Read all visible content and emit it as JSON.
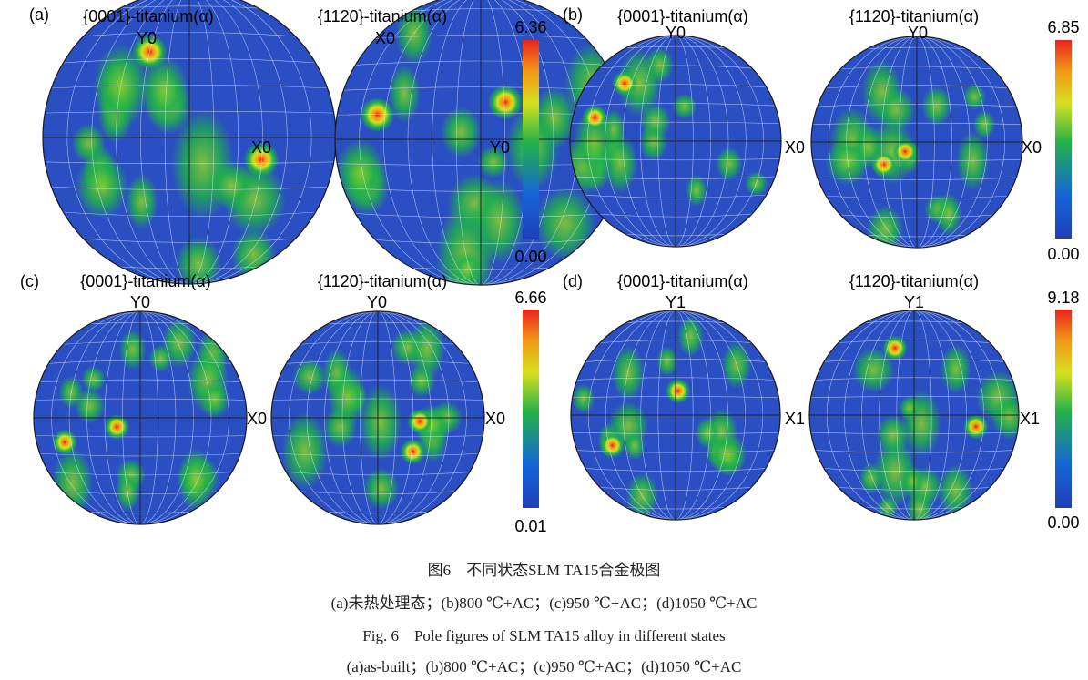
{
  "colors": {
    "background": "#2a4fc2",
    "grid": "#dfe6ff",
    "rim": "#1a1a1a",
    "ramp": [
      "#1f3fb8",
      "#1565d8",
      "#21b14a",
      "#d6e020",
      "#f29a16",
      "#e8231b"
    ]
  },
  "panels": [
    {
      "label": "(a)",
      "scale": {
        "max": "6.36",
        "min": "0.00"
      },
      "figures": [
        {
          "title": "{0001}-titanium(α)",
          "top_axis": "Y0",
          "right_axis": "X0"
        },
        {
          "title": "{1120}-titanium(α)",
          "top_axis": "X0",
          "right_axis": "Y0"
        }
      ]
    },
    {
      "label": "(b)",
      "scale": {
        "max": "6.85",
        "min": "0.00"
      },
      "figures": [
        {
          "title": "{0001}-titanium(α)",
          "top_axis": "Y0",
          "right_axis": "X0"
        },
        {
          "title": "{1120}-titanium(α)",
          "top_axis": "Y0",
          "right_axis": "X0"
        }
      ]
    },
    {
      "label": "(c)",
      "scale": {
        "max": "6.66",
        "min": "0.01"
      },
      "figures": [
        {
          "title": "{0001}-titanium(α)",
          "top_axis": "Y0",
          "right_axis": "X0"
        },
        {
          "title": "{1120}-titanium(α)",
          "top_axis": "Y0",
          "right_axis": "X0"
        }
      ]
    },
    {
      "label": "(d)",
      "scale": {
        "max": "9.18",
        "min": "0.00"
      },
      "figures": [
        {
          "title": "{0001}-titanium(α)",
          "top_axis": "Y1",
          "right_axis": "X1"
        },
        {
          "title": "{1120}-titanium(α)",
          "top_axis": "Y1",
          "right_axis": "X1"
        }
      ]
    }
  ],
  "caption": {
    "cn_title": "图6　不同状态SLM TA15合金极图",
    "cn_subtitle": "(a)未热处理态；(b)800 ℃+AC；(c)950 ℃+AC；(d)1050 ℃+AC",
    "en_title": "Fig. 6　Pole figures of SLM TA15 alloy in different states",
    "en_subtitle": "(a)as-built；(b)800 ℃+AC；(c)950 ℃+AC；(d)1050 ℃+AC"
  }
}
